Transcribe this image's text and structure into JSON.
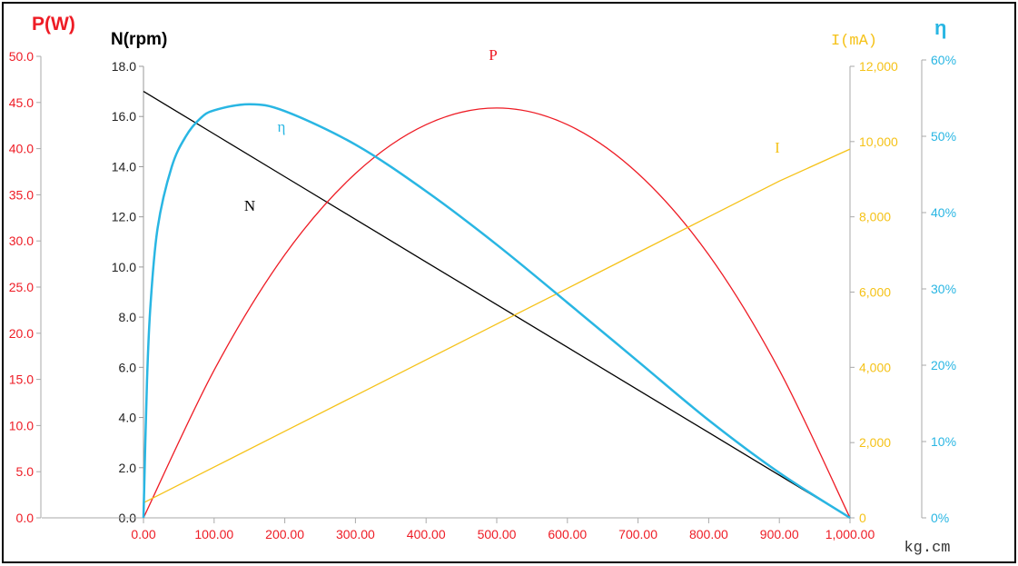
{
  "chart_data": {
    "type": "line",
    "x_axis": {
      "unit": "kg.cm",
      "ticks": [
        "0.00",
        "100.00",
        "200.00",
        "300.00",
        "400.00",
        "500.00",
        "600.00",
        "700.00",
        "800.00",
        "900.00",
        "1,000.00"
      ],
      "range": [
        0,
        1000
      ]
    },
    "axes": {
      "power": {
        "title": "P(W)",
        "ticks": [
          "0.0",
          "5.0",
          "10.0",
          "15.0",
          "20.0",
          "25.0",
          "30.0",
          "35.0",
          "40.0",
          "45.0",
          "50.0"
        ],
        "range": [
          0,
          50
        ],
        "color": "#ee1c25"
      },
      "speed": {
        "title": "N(rpm)",
        "ticks": [
          "0.0",
          "2.0",
          "4.0",
          "6.0",
          "8.0",
          "10.0",
          "12.0",
          "14.0",
          "16.0",
          "18.0"
        ],
        "range": [
          0,
          18
        ],
        "color": "#000000"
      },
      "current": {
        "title": "I(mA)",
        "ticks": [
          "0",
          "2,000",
          "4,000",
          "6,000",
          "8,000",
          "10,000",
          "12,000"
        ],
        "range": [
          0,
          12000
        ],
        "color": "#f5c218"
      },
      "efficiency": {
        "title": "η",
        "ticks": [
          "0%",
          "10%",
          "20%",
          "30%",
          "40%",
          "50%",
          "60%"
        ],
        "range": [
          0,
          60
        ],
        "color": "#29b6e3"
      }
    },
    "series": [
      {
        "name": "N",
        "axis": "speed",
        "color": "#000000",
        "points": [
          [
            0,
            17.0
          ],
          [
            100,
            15.3
          ],
          [
            200,
            13.6
          ],
          [
            300,
            11.9
          ],
          [
            400,
            10.2
          ],
          [
            500,
            8.5
          ],
          [
            600,
            6.8
          ],
          [
            700,
            5.1
          ],
          [
            800,
            3.4
          ],
          [
            900,
            1.7
          ],
          [
            1000,
            0
          ]
        ]
      },
      {
        "name": "P",
        "axis": "power",
        "color": "#ee1c25",
        "points": [
          [
            0,
            0
          ],
          [
            100,
            16.0
          ],
          [
            200,
            28.5
          ],
          [
            300,
            37.3
          ],
          [
            400,
            42.6
          ],
          [
            500,
            44.4
          ],
          [
            600,
            42.6
          ],
          [
            700,
            37.3
          ],
          [
            800,
            28.5
          ],
          [
            900,
            16.0
          ],
          [
            1000,
            0
          ]
        ]
      },
      {
        "name": "I",
        "axis": "current",
        "color": "#f5c218",
        "points": [
          [
            0,
            400
          ],
          [
            100,
            1350
          ],
          [
            200,
            2300
          ],
          [
            300,
            3250
          ],
          [
            400,
            4200
          ],
          [
            500,
            5150
          ],
          [
            600,
            6100
          ],
          [
            700,
            7050
          ],
          [
            800,
            8000
          ],
          [
            900,
            8950
          ],
          [
            1000,
            9800
          ]
        ]
      },
      {
        "name": "η",
        "axis": "efficiency",
        "color": "#29b6e3",
        "points": [
          [
            0,
            0
          ],
          [
            5,
            18
          ],
          [
            10,
            28
          ],
          [
            20,
            38
          ],
          [
            40,
            46
          ],
          [
            60,
            50
          ],
          [
            80,
            52.3
          ],
          [
            100,
            53.4
          ],
          [
            150,
            54.2
          ],
          [
            200,
            53.3
          ],
          [
            300,
            48.9
          ],
          [
            400,
            42.8
          ],
          [
            500,
            35.8
          ],
          [
            600,
            28.2
          ],
          [
            700,
            20.5
          ],
          [
            800,
            12.8
          ],
          [
            900,
            5.9
          ],
          [
            1000,
            0
          ]
        ]
      }
    ],
    "grid": false,
    "legend": "inline labels"
  }
}
